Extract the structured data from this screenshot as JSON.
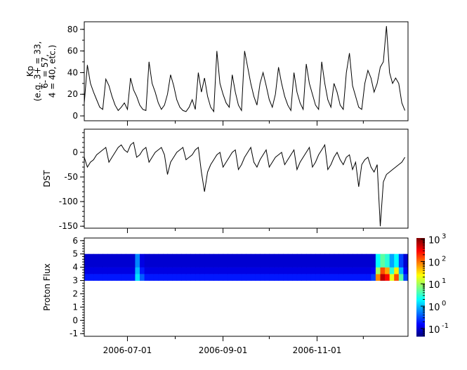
{
  "chart_data": [
    {
      "type": "line",
      "ylabel_lines": [
        "Kp",
        "(e.g. 3+ = 33,",
        "6- = 57,",
        "4 = 40, etc.)"
      ],
      "x_start": "2006-06-03",
      "x_step_days": 2,
      "ylim": [
        -4.5,
        87
      ],
      "yticks": [
        0,
        20,
        40,
        60,
        80
      ],
      "grid": false,
      "color": "#000000",
      "values": [
        12,
        47,
        30,
        22,
        15,
        8,
        6,
        34,
        28,
        18,
        10,
        5,
        8,
        12,
        6,
        35,
        24,
        18,
        10,
        6,
        5,
        50,
        30,
        22,
        12,
        6,
        10,
        20,
        38,
        28,
        15,
        8,
        5,
        4,
        8,
        15,
        6,
        40,
        22,
        35,
        18,
        8,
        4,
        60,
        30,
        20,
        12,
        8,
        38,
        22,
        10,
        5,
        60,
        45,
        30,
        18,
        10,
        30,
        40,
        28,
        15,
        8,
        20,
        45,
        30,
        18,
        10,
        5,
        40,
        22,
        12,
        6,
        48,
        30,
        20,
        10,
        6,
        50,
        30,
        15,
        8,
        30,
        22,
        10,
        6,
        40,
        58,
        28,
        18,
        8,
        6,
        30,
        42,
        35,
        22,
        30,
        45,
        50,
        83,
        40,
        30,
        35,
        30,
        12,
        5
      ]
    },
    {
      "type": "line",
      "ylabel_lines": [
        "DST"
      ],
      "x_start": "2006-06-03",
      "x_step_days": 2,
      "ylim": [
        -154,
        47
      ],
      "yticks": [
        0,
        -50,
        -100,
        -150
      ],
      "grid": false,
      "color": "#000000",
      "values": [
        -10,
        -30,
        -20,
        -15,
        -5,
        0,
        5,
        10,
        -20,
        -10,
        0,
        10,
        15,
        5,
        0,
        15,
        20,
        -10,
        -5,
        5,
        10,
        -20,
        -10,
        0,
        5,
        10,
        -5,
        -45,
        -20,
        -10,
        0,
        5,
        10,
        -15,
        -10,
        -5,
        5,
        10,
        -40,
        -80,
        -40,
        -25,
        -15,
        -5,
        0,
        -30,
        -20,
        -10,
        0,
        5,
        -35,
        -25,
        -10,
        0,
        10,
        -20,
        -30,
        -15,
        -5,
        5,
        -30,
        -20,
        -10,
        -5,
        0,
        -25,
        -15,
        -5,
        5,
        -35,
        -20,
        -10,
        0,
        10,
        -30,
        -20,
        -5,
        5,
        15,
        -35,
        -25,
        -10,
        0,
        -15,
        -25,
        -10,
        -5,
        -35,
        -20,
        -70,
        -25,
        -15,
        -10,
        -30,
        -40,
        -25,
        -150,
        -60,
        -45,
        -40,
        -35,
        -30,
        -25,
        -20,
        -10
      ]
    },
    {
      "type": "heatmap",
      "ylabel_lines": [
        "Proton Flux"
      ],
      "x_start": "2006-06-03",
      "x_step_days": 3,
      "ylim": [
        -1.2,
        6.2
      ],
      "yticks": [
        -1,
        0,
        1,
        2,
        3,
        4,
        5,
        6
      ],
      "y_bins": [
        [
          3,
          3.5
        ],
        [
          3.5,
          4
        ],
        [
          4,
          5
        ]
      ],
      "colormap": "jet",
      "colorbar": {
        "scale": "log",
        "range_log10": [
          -1.35,
          3.05
        ],
        "tick_labels": [
          "10",
          "10",
          "10",
          "10",
          "10"
        ],
        "tick_exponents": [
          "-1",
          "0",
          "1",
          "2",
          "3"
        ],
        "tick_values_log10": [
          -1,
          0,
          1,
          2,
          3
        ]
      },
      "rows": [
        [
          0.2,
          0.2,
          0.2,
          0.2,
          0.2,
          0.2,
          0.2,
          0.2,
          0.2,
          0.2,
          0.2,
          1.5,
          0.4,
          0.2,
          0.2,
          0.2,
          0.2,
          0.2,
          0.2,
          0.2,
          0.2,
          0.2,
          0.2,
          0.2,
          0.2,
          0.2,
          0.2,
          0.2,
          0.2,
          0.2,
          0.2,
          0.2,
          0.2,
          0.2,
          0.2,
          0.2,
          0.2,
          0.2,
          0.2,
          0.2,
          0.2,
          0.2,
          0.2,
          0.2,
          0.2,
          0.2,
          0.2,
          0.2,
          0.2,
          0.2,
          0.2,
          0.2,
          0.2,
          0.2,
          0.2,
          0.2,
          0.2,
          0.2,
          0.2,
          0.2,
          0.2,
          0.2,
          0.3,
          80,
          600,
          300,
          20,
          150,
          5,
          0.3,
          0.2
        ],
        [
          0.12,
          0.12,
          0.12,
          0.12,
          0.12,
          0.12,
          0.12,
          0.12,
          0.12,
          0.12,
          0.12,
          1.0,
          0.2,
          0.12,
          0.12,
          0.12,
          0.12,
          0.12,
          0.12,
          0.12,
          0.12,
          0.12,
          0.12,
          0.12,
          0.12,
          0.12,
          0.12,
          0.12,
          0.12,
          0.12,
          0.12,
          0.12,
          0.12,
          0.12,
          0.12,
          0.12,
          0.12,
          0.12,
          0.12,
          0.12,
          0.12,
          0.12,
          0.12,
          0.12,
          0.12,
          0.12,
          0.12,
          0.12,
          0.12,
          0.12,
          0.12,
          0.12,
          0.12,
          0.12,
          0.12,
          0.12,
          0.12,
          0.12,
          0.12,
          0.12,
          0.12,
          0.12,
          0.15,
          10,
          150,
          60,
          3,
          30,
          1,
          0.15,
          0.12
        ],
        [
          0.1,
          0.1,
          0.1,
          0.1,
          0.1,
          0.1,
          0.1,
          0.1,
          0.1,
          0.1,
          0.1,
          0.6,
          0.12,
          0.1,
          0.1,
          0.1,
          0.1,
          0.1,
          0.1,
          0.1,
          0.1,
          0.1,
          0.1,
          0.1,
          0.1,
          0.1,
          0.1,
          0.1,
          0.1,
          0.1,
          0.1,
          0.1,
          0.1,
          0.1,
          0.1,
          0.1,
          0.1,
          0.1,
          0.1,
          0.1,
          0.1,
          0.1,
          0.1,
          0.1,
          0.1,
          0.1,
          0.1,
          0.1,
          0.1,
          0.1,
          0.1,
          0.1,
          0.1,
          0.1,
          0.1,
          0.1,
          0.1,
          0.1,
          0.1,
          0.1,
          0.1,
          0.1,
          0.1,
          2,
          5,
          3,
          0.8,
          2,
          0.3,
          0.1,
          0.1
        ]
      ]
    }
  ],
  "x_axis": {
    "range": [
      "2006-06-03",
      "2006-12-30"
    ],
    "major_ticks": [
      "2006-07-01",
      "2006-09-01",
      "2006-11-01"
    ],
    "minor_ticks": [
      "2006-08-01",
      "2006-10-01",
      "2006-12-01"
    ]
  }
}
